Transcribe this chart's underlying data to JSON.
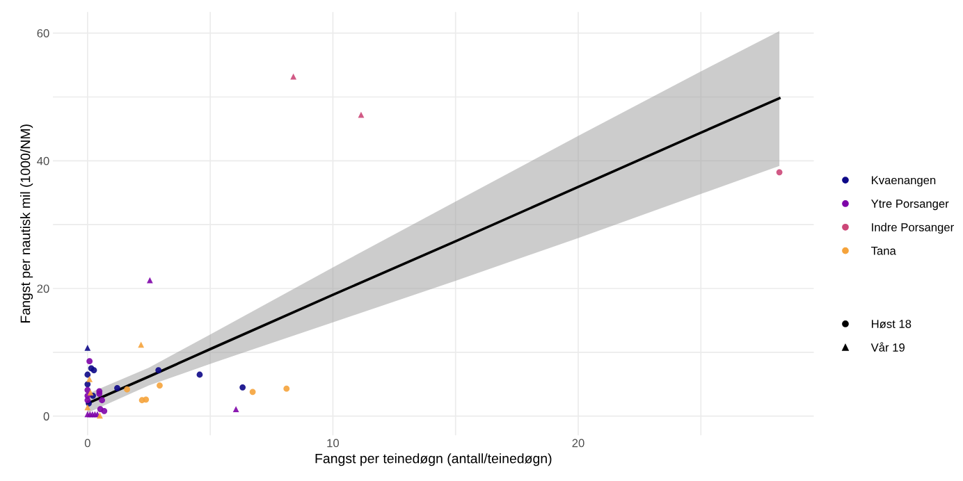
{
  "chart_data": {
    "type": "scatter",
    "xlabel": "Fangst per teinedøgn (antall/teinedøgn)",
    "ylabel": "Fangst per nautisk mil (1000/NM)",
    "xlim": [
      -1.41,
      29.6
    ],
    "xticks": [
      0,
      {
        "value": 5,
        "label": null
      },
      10,
      {
        "value": 15,
        "label": null
      },
      20,
      {
        "value": 25,
        "label": null
      }
    ],
    "ylim": [
      -3.0,
      63.3
    ],
    "yticks": [
      0,
      {
        "value": 10,
        "label": null
      },
      20,
      {
        "value": 30,
        "label": null
      },
      40,
      {
        "value": 50,
        "label": null
      },
      60
    ],
    "grid": true,
    "legend": "right",
    "series": [
      {
        "type": "line",
        "color": "#000000",
        "marker": "none",
        "x": [
          0,
          2.5,
          5,
          10,
          15,
          20,
          25,
          28.2
        ],
        "values": [
          2.0,
          6.2,
          10.5,
          19.0,
          27.4,
          35.9,
          44.4,
          49.8
        ],
        "lower": [
          0.5,
          4.8,
          8.2,
          14.7,
          21.2,
          27.9,
          34.8,
          39.2
        ],
        "upper": [
          3.5,
          7.6,
          12.8,
          23.3,
          33.6,
          43.9,
          54.0,
          60.3
        ]
      },
      {
        "name": "Kvaenangen",
        "color": "#0d0887",
        "marker": "circle",
        "x": [
          0.15,
          0.26,
          0,
          4.57,
          0,
          2.89,
          1.21,
          0.22,
          0.05,
          6.32
        ],
        "values": [
          7.5,
          7.2,
          6.5,
          6.5,
          5.0,
          7.2,
          4.4,
          3.2,
          2.0,
          4.5
        ]
      },
      {
        "name": "Ytre Porsanger",
        "color": "#7e03a8",
        "marker": "circle",
        "x": [
          0.08,
          0.48,
          0.48,
          0.59,
          0,
          0,
          0,
          0.52,
          0.68
        ],
        "values": [
          8.6,
          3.9,
          3.5,
          2.5,
          4.1,
          3.2,
          2.5,
          1.1,
          0.8
        ]
      },
      {
        "name": "Indre Porsanger",
        "color": "#cc4778",
        "marker": "circle",
        "x": [
          28.2
        ],
        "values": [
          38.2
        ]
      },
      {
        "name": "Tana",
        "color": "#f5a33b",
        "marker": "circle",
        "x": [
          2.94,
          1.61,
          2.22,
          2.38,
          6.73,
          8.11
        ],
        "values": [
          4.8,
          4.2,
          2.5,
          2.6,
          3.8,
          4.3
        ]
      },
      {
        "color": "#0d0887",
        "marker": "triangle",
        "x": [
          0
        ],
        "values": [
          10.7
        ]
      },
      {
        "color": "#7e03a8",
        "marker": "triangle",
        "x": [
          2.54,
          6.05,
          0,
          0.1,
          0.2,
          0.3,
          0.4
        ],
        "values": [
          21.3,
          1.1,
          0.3,
          0.3,
          0.3,
          0.3,
          0.3
        ]
      },
      {
        "color": "#cc4778",
        "marker": "triangle",
        "x": [
          8.39,
          11.15
        ],
        "values": [
          53.2,
          47.2
        ]
      },
      {
        "color": "#f5a33b",
        "marker": "triangle",
        "x": [
          2.18,
          0.08,
          0.12,
          0,
          0.5
        ],
        "values": [
          11.2,
          5.8,
          3.7,
          1.4,
          0.1
        ]
      },
      {
        "name": "Høst 18",
        "color": "#000000",
        "marker": "circle"
      },
      {
        "name": "Vår 19",
        "color": "#000000",
        "marker": "triangle"
      }
    ]
  }
}
